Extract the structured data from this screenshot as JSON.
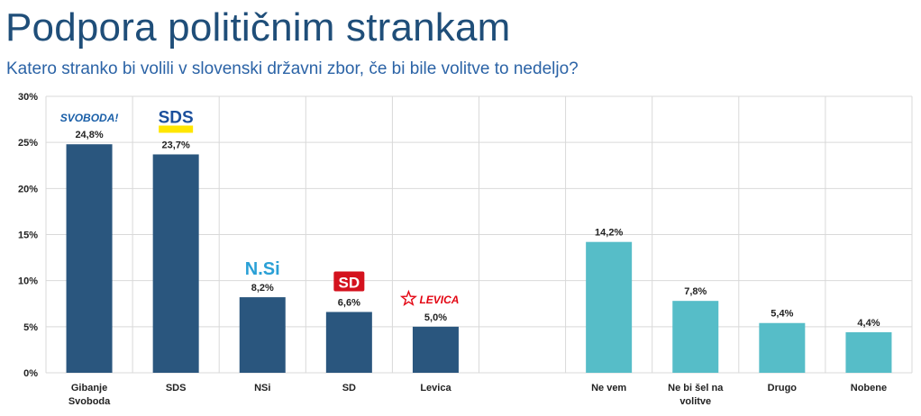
{
  "title": "Podpora političnim strankam",
  "subtitle": "Katero stranko bi volili v slovenski državni zbor, če bi bile volitve to nedeljo?",
  "colors": {
    "party_bar": "#2a567e",
    "other_bar": "#56bdc8",
    "grid": "#d9d9d9",
    "text": "#222222"
  },
  "logos": {
    "svoboda": {
      "text": "SVOBODA!",
      "color": "#1a5fa8"
    },
    "sds": {
      "text": "SDS",
      "color": "#1b4f9c",
      "accent": "#ffe600"
    },
    "nsi": {
      "text": "N.Si",
      "color": "#2aa0d6",
      "dot": "#e52521"
    },
    "sd": {
      "text": "SD",
      "color": "#ffffff",
      "bg": "#d4121e"
    },
    "levica": {
      "text": "LEVICA",
      "color": "#e30613"
    }
  },
  "chart_data": {
    "type": "bar",
    "categories": [
      "Gibanje Svoboda",
      "SDS",
      "NSi",
      "SD",
      "Levica",
      "",
      "Ne vem",
      "Ne bi šel na volitve",
      "Drugo",
      "Nobene"
    ],
    "category_lines": [
      [
        "Gibanje",
        "Svoboda"
      ],
      [
        "SDS"
      ],
      [
        "NSi"
      ],
      [
        "SD"
      ],
      [
        "Levica"
      ],
      [],
      [
        "Ne vem"
      ],
      [
        "Ne bi šel na",
        "volitve"
      ],
      [
        "Drugo"
      ],
      [
        "Nobene"
      ]
    ],
    "values": [
      24.8,
      23.7,
      8.2,
      6.6,
      5.0,
      null,
      14.2,
      7.8,
      5.4,
      4.4
    ],
    "value_labels": [
      "24,8%",
      "23,7%",
      "8,2%",
      "6,6%",
      "5,0%",
      "",
      "14,2%",
      "7,8%",
      "5,4%",
      "4,4%"
    ],
    "groups": [
      "party",
      "party",
      "party",
      "party",
      "party",
      "gap",
      "other",
      "other",
      "other",
      "other"
    ],
    "logo_keys": [
      "svoboda",
      "sds",
      "nsi",
      "sd",
      "levica",
      "",
      "",
      "",
      "",
      ""
    ],
    "yticks": [
      0,
      5,
      10,
      15,
      20,
      25,
      30
    ],
    "ytick_labels": [
      "0%",
      "5%",
      "10%",
      "15%",
      "20%",
      "25%",
      "30%"
    ],
    "ylim": [
      0,
      30
    ],
    "grid": true,
    "xlabel": "",
    "ylabel": ""
  }
}
